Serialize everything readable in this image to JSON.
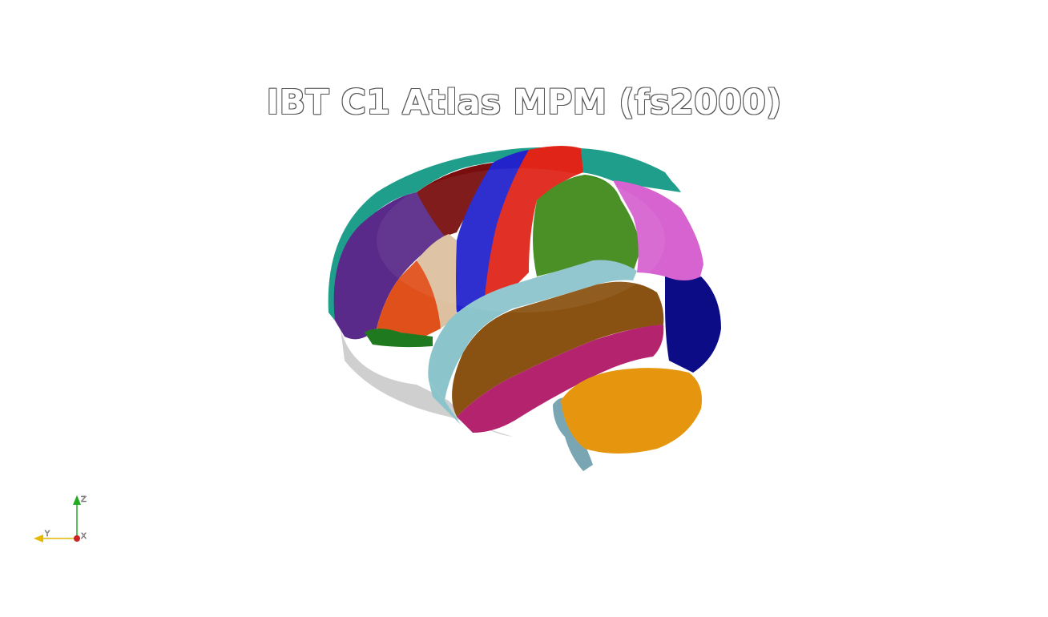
{
  "viewer": {
    "title": "IBT C1 Atlas MPM (fs2000)"
  },
  "orientation_axes": {
    "x_label": "X",
    "y_label": "Y",
    "z_label": "Z",
    "x_color": "#cc2222",
    "y_color": "#e6b800",
    "z_color": "#22aa22"
  },
  "region_colors": {
    "superior_frontal": "#1f9e8c",
    "middle_frontal": "#5a2a8a",
    "caudal_middle_frontal": "#7a0e0e",
    "precentral": "#2323cc",
    "postcentral": "#e02418",
    "supramarginal": "#3f8a1a",
    "superior_parietal": "#d763d1",
    "inferior_parietal": "#0c0c86",
    "pars_opercularis": "#dcc0a0",
    "pars_triangularis": "#e0501a",
    "pars_orbitalis": "#1f7a1f",
    "superior_temporal": "#8cc4cc",
    "middle_temporal": "#8a5212",
    "inferior_temporal": "#b4246e",
    "cerebellum": "#e6960e",
    "brainstem": "#7aa6b4"
  }
}
